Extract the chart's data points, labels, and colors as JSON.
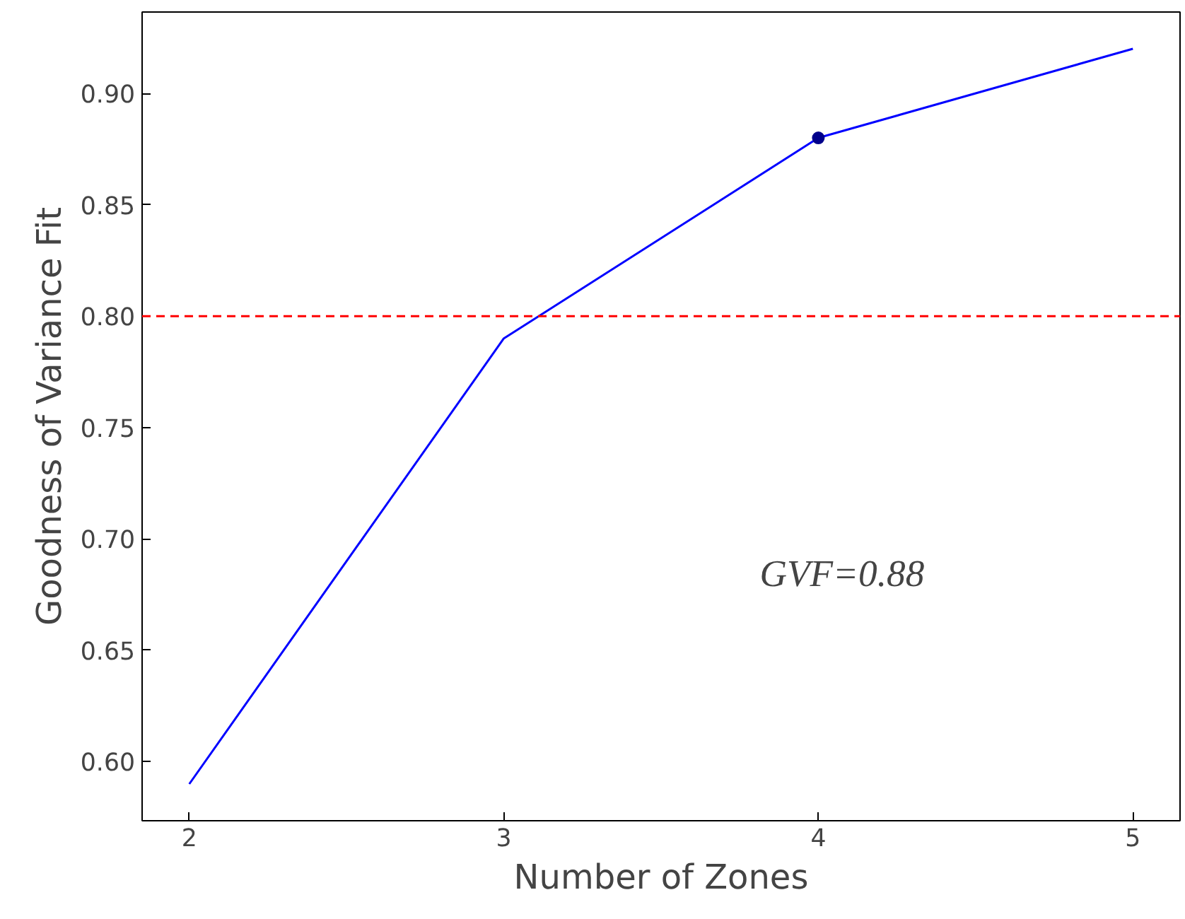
{
  "chart_data": {
    "type": "line",
    "xlabel": "Number of Zones",
    "ylabel": "Goodness of Variance Fit",
    "x": [
      2,
      3,
      4,
      5
    ],
    "series": [
      {
        "color": "#0000ff",
        "values": [
          0.59,
          0.79,
          0.88,
          0.92
        ]
      },
      {
        "type": "scatter",
        "x": [
          4
        ],
        "color": "#00008b",
        "values": [
          0.88
        ],
        "marker": "circle"
      }
    ],
    "xlim": [
      1.85,
      5.15
    ],
    "ylim": [
      0.5735,
      0.9365
    ],
    "xticks": [
      2,
      3,
      4,
      5
    ],
    "yticks": [
      {
        "value": 0.6,
        "label": "0.60"
      },
      {
        "value": 0.65,
        "label": "0.65"
      },
      {
        "value": 0.7,
        "label": "0.70"
      },
      {
        "value": 0.75,
        "label": "0.75"
      },
      {
        "value": 0.8,
        "label": "0.80"
      },
      {
        "value": 0.85,
        "label": "0.85"
      },
      {
        "value": 0.9,
        "label": "0.90"
      }
    ],
    "ref_lines": [
      {
        "axis": "y",
        "value": 0.8,
        "color": "#ff0000",
        "line_style": "dashed"
      }
    ],
    "annotations": [
      "GVF=0.88"
    ]
  }
}
